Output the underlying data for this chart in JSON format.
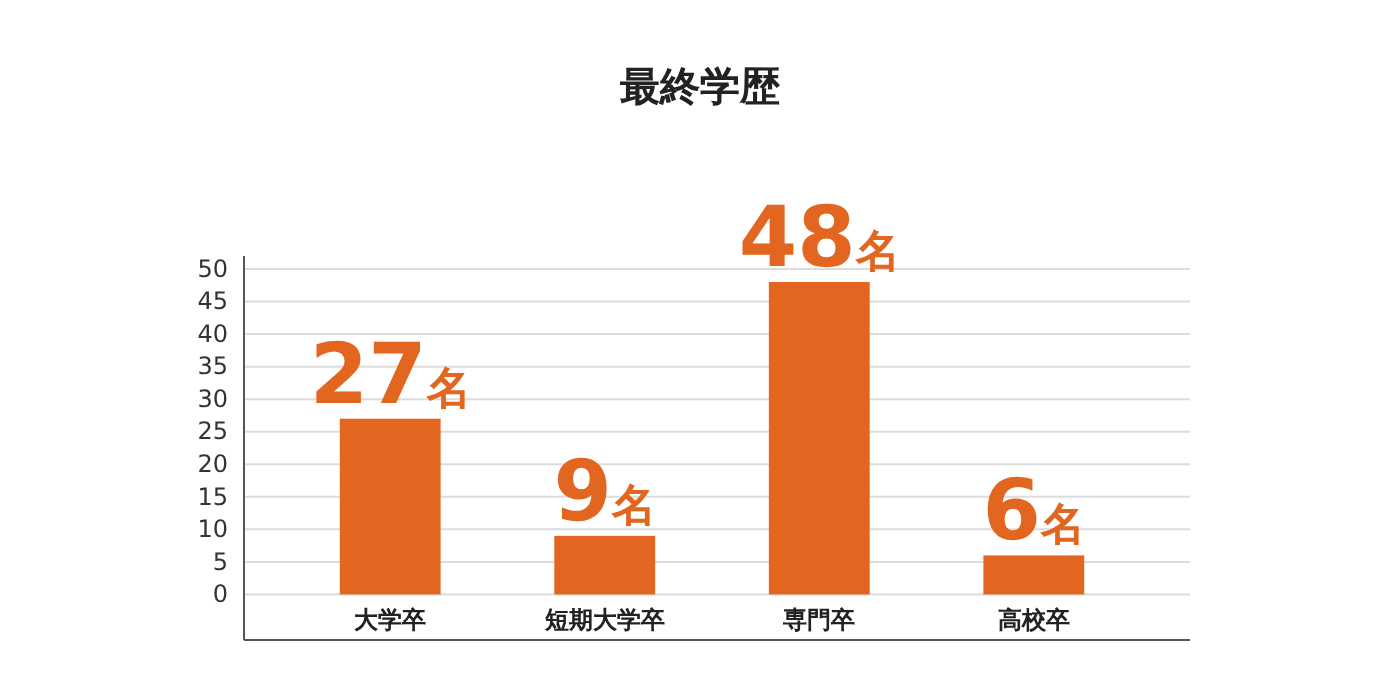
{
  "chart_data": {
    "type": "bar",
    "title": "最終学歴",
    "categories": [
      "大学卒",
      "短期大学卒",
      "専門卒",
      "高校卒"
    ],
    "values": [
      27,
      9,
      48,
      6
    ],
    "color": "#e2661f",
    "value_labels": [
      "27名",
      "9名",
      "48名",
      "6名"
    ],
    "ylim": [
      -7,
      52
    ],
    "yticks": [
      0,
      5,
      10,
      15,
      20,
      25,
      30,
      35,
      40,
      45,
      50
    ],
    "grid": "y"
  }
}
